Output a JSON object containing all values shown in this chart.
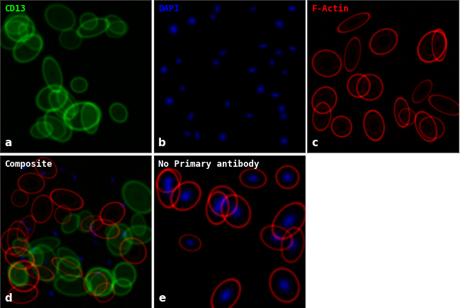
{
  "panel_labels": [
    "a",
    "b",
    "c",
    "d",
    "e"
  ],
  "panel_titles": [
    "CD13",
    "DAPI",
    "F-Actin",
    "Composite",
    "No Primary antibody"
  ],
  "title_colors": [
    "#00ff00",
    "#0000ff",
    "#ff0000",
    "#ffffff",
    "#ffffff"
  ],
  "label_color": "#ffffff",
  "outer_bg": "#ffffff",
  "seed": 42,
  "img_size": 256,
  "label_fontsize": 11,
  "title_fontsize": 9,
  "n_cells_a": 22,
  "n_cells_b": 30,
  "n_cells_c": 18,
  "n_cells_d": 20,
  "n_cells_e": 14
}
